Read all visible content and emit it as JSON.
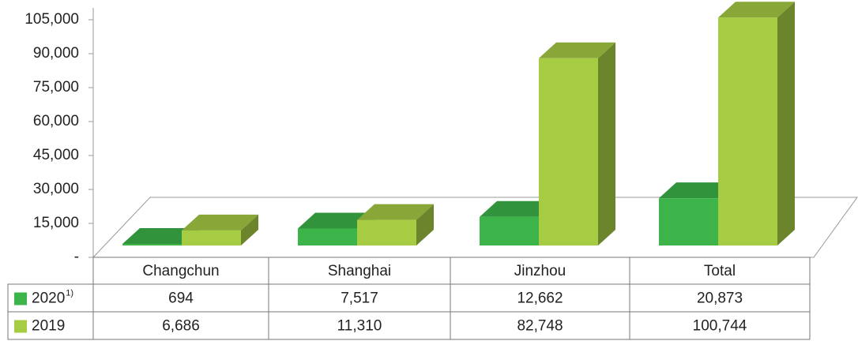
{
  "chart_data": {
    "type": "bar3d",
    "categories": [
      "Changchun",
      "Shanghai",
      "Jinzhou",
      "Total"
    ],
    "series": [
      {
        "name": "2020",
        "name_note": "1)",
        "color": "#3cb44a",
        "values": [
          694,
          7517,
          12662,
          20873
        ],
        "value_labels": [
          "694",
          "7,517",
          "12,662",
          "20,873"
        ]
      },
      {
        "name": "2019",
        "color": "#a6cc44",
        "values": [
          6686,
          11310,
          82748,
          100744
        ],
        "value_labels": [
          "6,686",
          "11,310",
          "82,748",
          "100,744"
        ]
      }
    ],
    "ylim": [
      0,
      105000
    ],
    "yticks": [
      {
        "value": 0,
        "label": "-"
      },
      {
        "value": 15000,
        "label": "15,000"
      },
      {
        "value": 30000,
        "label": "30,000"
      },
      {
        "value": 45000,
        "label": "45,000"
      },
      {
        "value": 60000,
        "label": "60,000"
      },
      {
        "value": 75000,
        "label": "75,000"
      },
      {
        "value": 90000,
        "label": "90,000"
      },
      {
        "value": 105000,
        "label": "105,000"
      }
    ]
  }
}
